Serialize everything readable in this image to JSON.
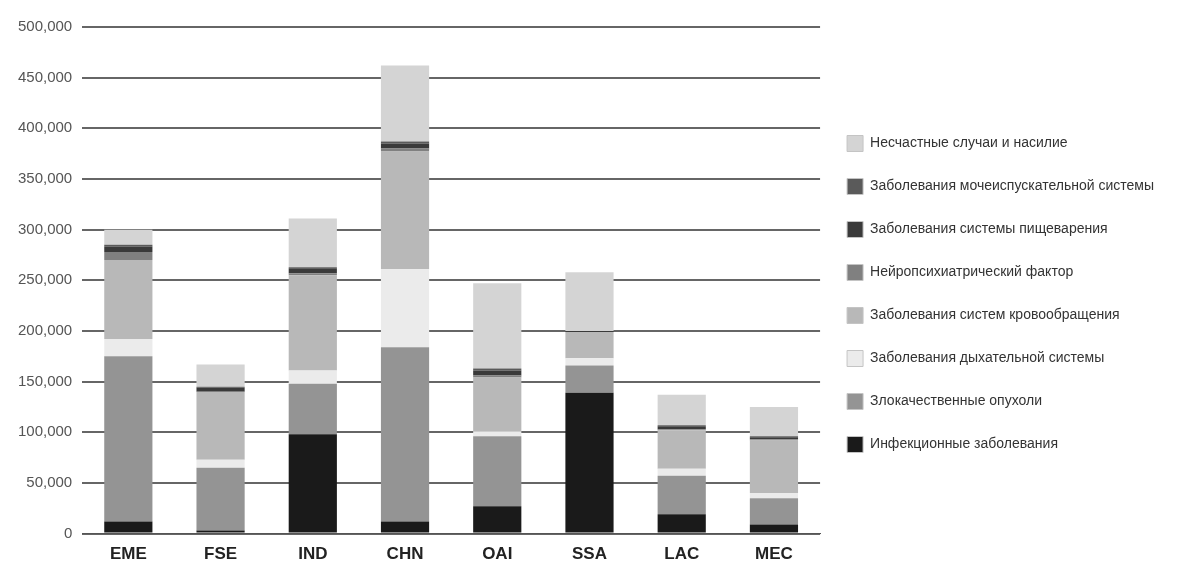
{
  "chart_data": {
    "type": "bar",
    "stacked": true,
    "categories": [
      "EME",
      "FSE",
      "IND",
      "CHN",
      "OAI",
      "SSA",
      "LAC",
      "MEC"
    ],
    "series": [
      {
        "name": "Инфекционные заболевания",
        "color": "#1a1a1a",
        "values": [
          12000,
          3000,
          98000,
          12000,
          27000,
          139000,
          19000,
          9000
        ]
      },
      {
        "name": "Злокачественные опухоли",
        "color": "#949494",
        "values": [
          163000,
          62000,
          50000,
          172000,
          69000,
          27000,
          38000,
          26000
        ]
      },
      {
        "name": "Заболевания дыхательной системы",
        "color": "#ebebeb",
        "values": [
          17000,
          8000,
          13000,
          77000,
          5000,
          7000,
          7000,
          5000
        ]
      },
      {
        "name": "Заболевания систем кровообращения",
        "color": "#b8b8b8",
        "values": [
          78000,
          67000,
          94000,
          116000,
          53000,
          26000,
          38000,
          52000
        ]
      },
      {
        "name": "Нейропсихиатрический фактор",
        "color": "#808080",
        "values": [
          8000,
          0,
          2000,
          3000,
          2000,
          0,
          1000,
          1000
        ]
      },
      {
        "name": "Заболевания системы пищеварения",
        "color": "#3a3a3a",
        "values": [
          5000,
          4000,
          5000,
          5000,
          5000,
          1000,
          3000,
          2000
        ]
      },
      {
        "name": "Заболевания мочеиспускательной системы",
        "color": "#5a5a5a",
        "values": [
          2000,
          1000,
          1000,
          2000,
          2000,
          0,
          1000,
          1000
        ]
      },
      {
        "name": "Несчастные случаи и насилие",
        "color": "#d4d4d4",
        "values": [
          15000,
          22000,
          48000,
          75000,
          84000,
          58000,
          30000,
          29000
        ]
      }
    ],
    "ylim": [
      0,
      500000
    ],
    "yticks": [
      {
        "value": 0,
        "label": "0"
      },
      {
        "value": 50000,
        "label": "50,000"
      },
      {
        "value": 100000,
        "label": "100,000"
      },
      {
        "value": 150000,
        "label": "150,000"
      },
      {
        "value": 200000,
        "label": "200,000"
      },
      {
        "value": 250000,
        "label": "250,000"
      },
      {
        "value": 300000,
        "label": "300,000"
      },
      {
        "value": 350000,
        "label": "350,000"
      },
      {
        "value": 400000,
        "label": "400,000"
      },
      {
        "value": 450000,
        "label": "450,000"
      },
      {
        "value": 500000,
        "label": "500,000"
      }
    ],
    "grid": "y",
    "legend": "right"
  }
}
